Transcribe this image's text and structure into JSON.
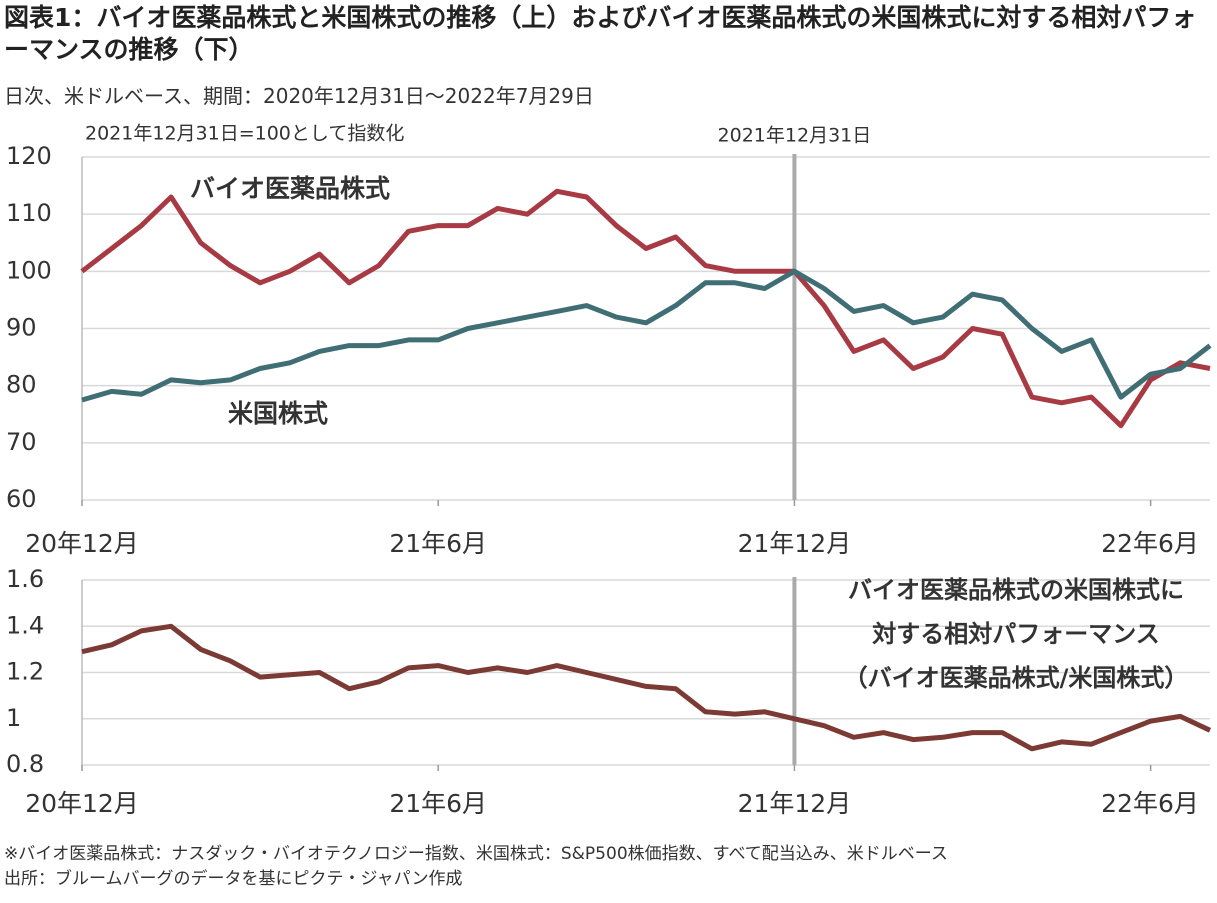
{
  "header": {
    "title": "図表1：バイオ医薬品株式と米国株式の推移（上）およびバイオ医薬品株式の米国株式に対する相対パフォーマンスの推移（下）",
    "subtitle": "日次、米ドルベース、期間：2020年12月31日～2022年7月29日"
  },
  "chart_data": [
    {
      "type": "line",
      "annotation": "2021年12月31日=100として指数化",
      "vline": 12,
      "vline_label": "2021年12月31日",
      "x": [
        0,
        0.5,
        1,
        1.5,
        2,
        2.5,
        3,
        3.5,
        4,
        4.5,
        5,
        5.5,
        6,
        6.5,
        7,
        7.5,
        8,
        8.5,
        9,
        9.5,
        10,
        10.5,
        11,
        11.5,
        12,
        12.5,
        13,
        13.5,
        14,
        14.5,
        15,
        15.5,
        16,
        16.5,
        17,
        17.5,
        18,
        18.5,
        19
      ],
      "xlim": [
        0,
        19
      ],
      "xticks": [
        {
          "value": 0,
          "label": "20年12月"
        },
        {
          "value": 6,
          "label": "21年6月"
        },
        {
          "value": 12,
          "label": "21年12月"
        },
        {
          "value": 18,
          "label": "22年6月"
        }
      ],
      "ylim": [
        60,
        120
      ],
      "yticks": [
        60,
        70,
        80,
        90,
        100,
        110,
        120
      ],
      "grid": true,
      "series": [
        {
          "name": "バイオ医薬品株式",
          "color": "#a83a44",
          "values": [
            100,
            104,
            108,
            113,
            105,
            101,
            98,
            100,
            103,
            98,
            101,
            107,
            108,
            108,
            111,
            110,
            114,
            113,
            108,
            104,
            106,
            101,
            100,
            100,
            100,
            94,
            86,
            88,
            83,
            85,
            90,
            89,
            78,
            77,
            78,
            73,
            81,
            84,
            83
          ]
        },
        {
          "name": "米国株式",
          "color": "#3f6e74",
          "values": [
            77.5,
            79,
            78.5,
            81,
            80.5,
            81,
            83,
            84,
            86,
            87,
            87,
            88,
            88,
            90,
            91,
            92,
            93,
            94,
            92,
            91,
            94,
            98,
            98,
            97,
            100,
            97,
            93,
            94,
            91,
            92,
            96,
            95,
            90,
            86,
            88,
            78,
            82,
            83,
            87
          ]
        }
      ]
    },
    {
      "type": "line",
      "vline": 12,
      "annotation_lines": [
        "バイオ医薬品株式の米国株式に",
        "対する相対パフォーマンス",
        "（バイオ医薬品株式/米国株式）"
      ],
      "x": [
        0,
        0.5,
        1,
        1.5,
        2,
        2.5,
        3,
        3.5,
        4,
        4.5,
        5,
        5.5,
        6,
        6.5,
        7,
        7.5,
        8,
        8.5,
        9,
        9.5,
        10,
        10.5,
        11,
        11.5,
        12,
        12.5,
        13,
        13.5,
        14,
        14.5,
        15,
        15.5,
        16,
        16.5,
        17,
        17.5,
        18,
        18.5,
        19
      ],
      "xlim": [
        0,
        19
      ],
      "xticks": [
        {
          "value": 0,
          "label": "20年12月"
        },
        {
          "value": 6,
          "label": "21年6月"
        },
        {
          "value": 12,
          "label": "21年12月"
        },
        {
          "value": 18,
          "label": "22年6月"
        }
      ],
      "ylim": [
        0.8,
        1.6
      ],
      "yticks": [
        0.8,
        1,
        1.2,
        1.4,
        1.6
      ],
      "grid": true,
      "series": [
        {
          "color": "#7b3b34",
          "values": [
            1.29,
            1.32,
            1.38,
            1.4,
            1.3,
            1.25,
            1.18,
            1.19,
            1.2,
            1.13,
            1.16,
            1.22,
            1.23,
            1.2,
            1.22,
            1.2,
            1.23,
            1.2,
            1.17,
            1.14,
            1.13,
            1.03,
            1.02,
            1.03,
            1.0,
            0.97,
            0.92,
            0.94,
            0.91,
            0.92,
            0.94,
            0.94,
            0.87,
            0.9,
            0.89,
            0.94,
            0.99,
            1.01,
            0.95
          ]
        }
      ]
    }
  ],
  "footer": {
    "notes": [
      "※バイオ医薬品株式：ナスダック・バイオテクノロジー指数、米国株式：S&P500株価指数、すべて配当込み、米ドルベース",
      "出所：ブルームバーグのデータを基にピクテ・ジャパン作成"
    ]
  }
}
